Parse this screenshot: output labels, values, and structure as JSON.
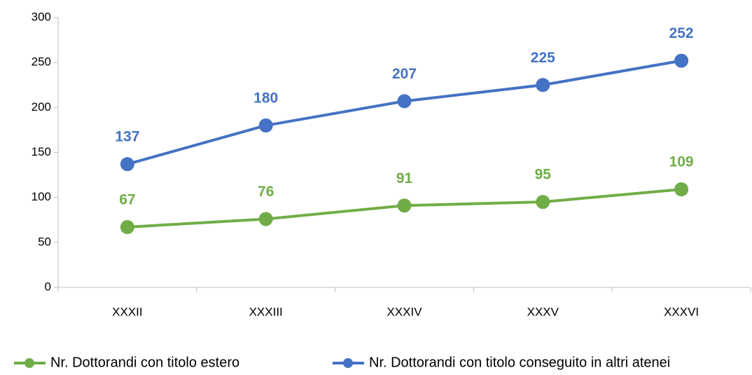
{
  "chart_data": {
    "type": "line",
    "categories": [
      "XXXII",
      "XXXIII",
      "XXXIV",
      "XXXV",
      "XXXVI"
    ],
    "series": [
      {
        "name": "Nr. Dottorandi con titolo estero",
        "color": "#70ad47",
        "values": [
          67,
          76,
          91,
          95,
          109
        ]
      },
      {
        "name": "Nr. Dottorandi con titolo conseguito in altri atenei",
        "color": "#4472c4",
        "values": [
          137,
          180,
          207,
          225,
          252
        ]
      }
    ],
    "ylim": [
      0,
      300
    ],
    "yticks": [
      0,
      50,
      100,
      150,
      200,
      250,
      300
    ],
    "grid": false,
    "legend": "bottom"
  }
}
